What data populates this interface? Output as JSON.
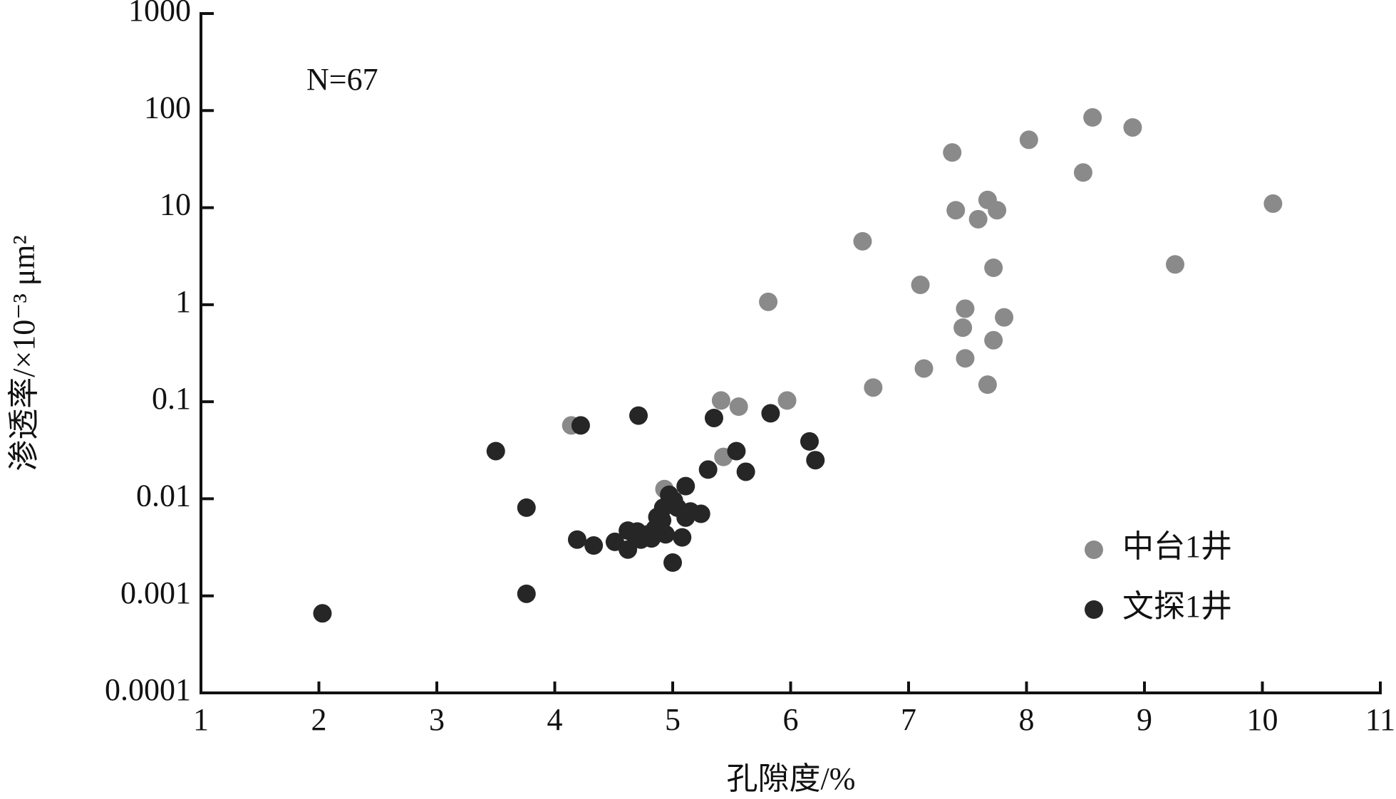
{
  "chart_data": {
    "type": "scatter",
    "annotation": "N=67",
    "x_label": "孔隙度/%",
    "y_label": "渗透率/×10⁻³ μm²",
    "xlim": [
      1,
      11
    ],
    "xticks": [
      1,
      2,
      3,
      4,
      5,
      6,
      7,
      8,
      9,
      10,
      11
    ],
    "ylim": [
      0.0001,
      1000
    ],
    "yticks": [
      0.0001,
      0.001,
      0.01,
      0.1,
      1,
      10,
      100,
      1000
    ],
    "y_scale": "log",
    "legend": "lower right",
    "series": [
      {
        "name": "中台1井",
        "color": "#8a8a8a",
        "x": [
          8.56,
          8.9,
          8.02,
          7.37,
          8.48,
          10.09,
          7.67,
          7.4,
          7.75,
          7.59,
          6.61,
          9.26,
          7.72,
          7.1,
          5.81,
          7.48,
          7.81,
          7.46,
          7.72,
          7.48,
          7.13,
          7.67,
          6.7,
          5.41,
          5.97,
          5.56,
          4.14,
          5.43,
          4.93,
          4.97
        ],
        "values": [
          85,
          67,
          50,
          37,
          23,
          11,
          12,
          9.4,
          9.4,
          7.6,
          4.5,
          2.6,
          2.4,
          1.6,
          1.07,
          0.91,
          0.74,
          0.58,
          0.43,
          0.28,
          0.22,
          0.15,
          0.14,
          0.103,
          0.103,
          0.089,
          0.057,
          0.027,
          0.0126,
          0.011
        ]
      },
      {
        "name": "文探1井",
        "color": "#262626",
        "x": [
          2.03,
          3.5,
          3.76,
          3.76,
          4.22,
          4.71,
          5.35,
          5.83,
          6.16,
          6.21,
          5.54,
          5.62,
          5.3,
          5.11,
          4.19,
          4.33,
          4.51,
          4.62,
          4.7,
          4.62,
          4.79,
          4.85,
          4.87,
          4.92,
          5.01,
          4.97,
          5.11,
          5.15,
          5.08,
          4.94,
          5.24,
          5.0,
          4.82,
          4.73,
          4.91,
          5.04,
          4.68
        ],
        "values": [
          0.00066,
          0.031,
          0.0081,
          0.00105,
          0.057,
          0.072,
          0.068,
          0.076,
          0.039,
          0.025,
          0.031,
          0.019,
          0.02,
          0.0135,
          0.0038,
          0.0033,
          0.0036,
          0.0047,
          0.0046,
          0.003,
          0.0043,
          0.0049,
          0.0065,
          0.0081,
          0.0096,
          0.011,
          0.0064,
          0.0074,
          0.004,
          0.0043,
          0.007,
          0.0022,
          0.0039,
          0.0038,
          0.006,
          0.0081,
          0.0042
        ]
      }
    ]
  }
}
